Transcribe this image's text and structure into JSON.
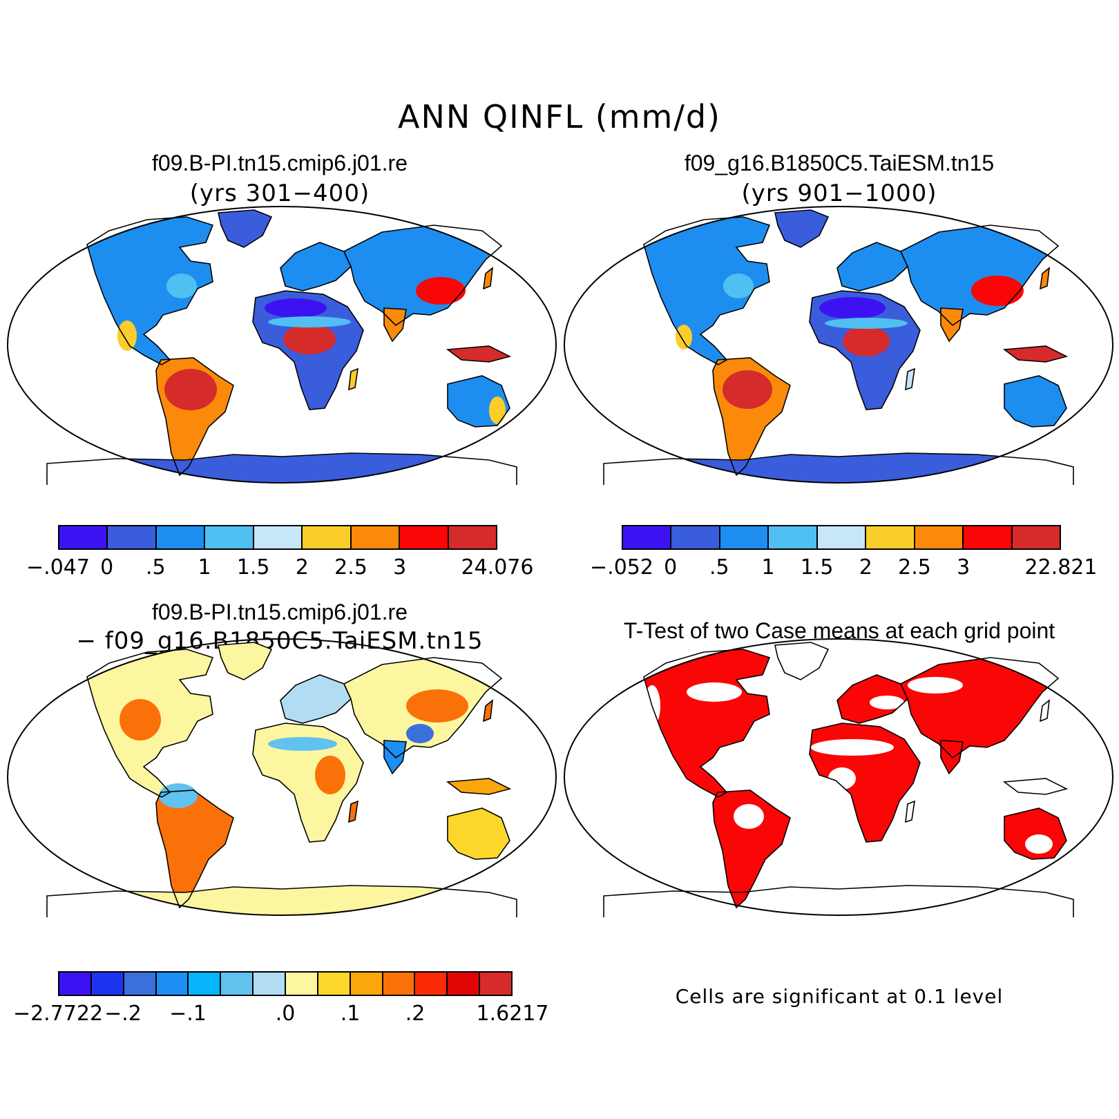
{
  "title": "ANN QINFL (mm/d)",
  "panels": {
    "tl": {
      "case": "f09.B-PI.tn15.cmip6.j01.re",
      "years": "(yrs 301−400)"
    },
    "tr": {
      "case": "f09_g16.B1850C5.TaiESM.tn15",
      "years": "(yrs 901−1000)"
    },
    "bl": {
      "case": "f09.B-PI.tn15.cmip6.j01.re",
      "diff": "− f09_g16.B1850C5.TaiESM.tn15"
    },
    "br": {
      "title": "T-Test of two Case means at each grid point",
      "note": "Cells are significant at 0.1 level"
    }
  },
  "colorbars": {
    "cb1": {
      "colors": [
        "#3d12f2",
        "#3a5ddc",
        "#1d8ef0",
        "#50bff2",
        "#c7e6f7",
        "#fbcd2b",
        "#fb8a0a",
        "#fb0606",
        "#d62b2b"
      ],
      "ticks": [
        "−.047",
        "0",
        ".5",
        "1",
        "1.5",
        "2",
        "2.5",
        "3",
        "24.076"
      ]
    },
    "cb2": {
      "colors": [
        "#3d12f2",
        "#3a5ddc",
        "#1d8ef0",
        "#50bff2",
        "#c7e6f7",
        "#fbcd2b",
        "#fb8a0a",
        "#fb0606",
        "#d62b2b"
      ],
      "ticks": [
        "−.052",
        "0",
        ".5",
        "1",
        "1.5",
        "2",
        "2.5",
        "3",
        "22.821"
      ]
    },
    "cb3": {
      "colors": [
        "#3d12f2",
        "#1f34f0",
        "#3a6fdc",
        "#1c8ff3",
        "#05b4fa",
        "#61c1ef",
        "#b2dcf2",
        "#fcf6a0",
        "#fbd72b",
        "#fca60d",
        "#fb7109",
        "#fc2b07",
        "#e00606",
        "#d62b2b"
      ],
      "ticks": [
        "−2.7722",
        "−.2",
        "−.1",
        ".0",
        ".1",
        ".2",
        "1.6217"
      ]
    }
  },
  "map_colors": {
    "dry_blue": "#3a5ddc",
    "deep_blue": "#3d12f2",
    "mid_blue": "#1d8ef0",
    "light_blue": "#50bff2",
    "yellow": "#fbcd2b",
    "orange": "#fb8a0a",
    "red": "#fb0606",
    "dark_red": "#d62b2b",
    "pale_yellow": "#fcf6a0",
    "significant_red": "#fb0606"
  }
}
